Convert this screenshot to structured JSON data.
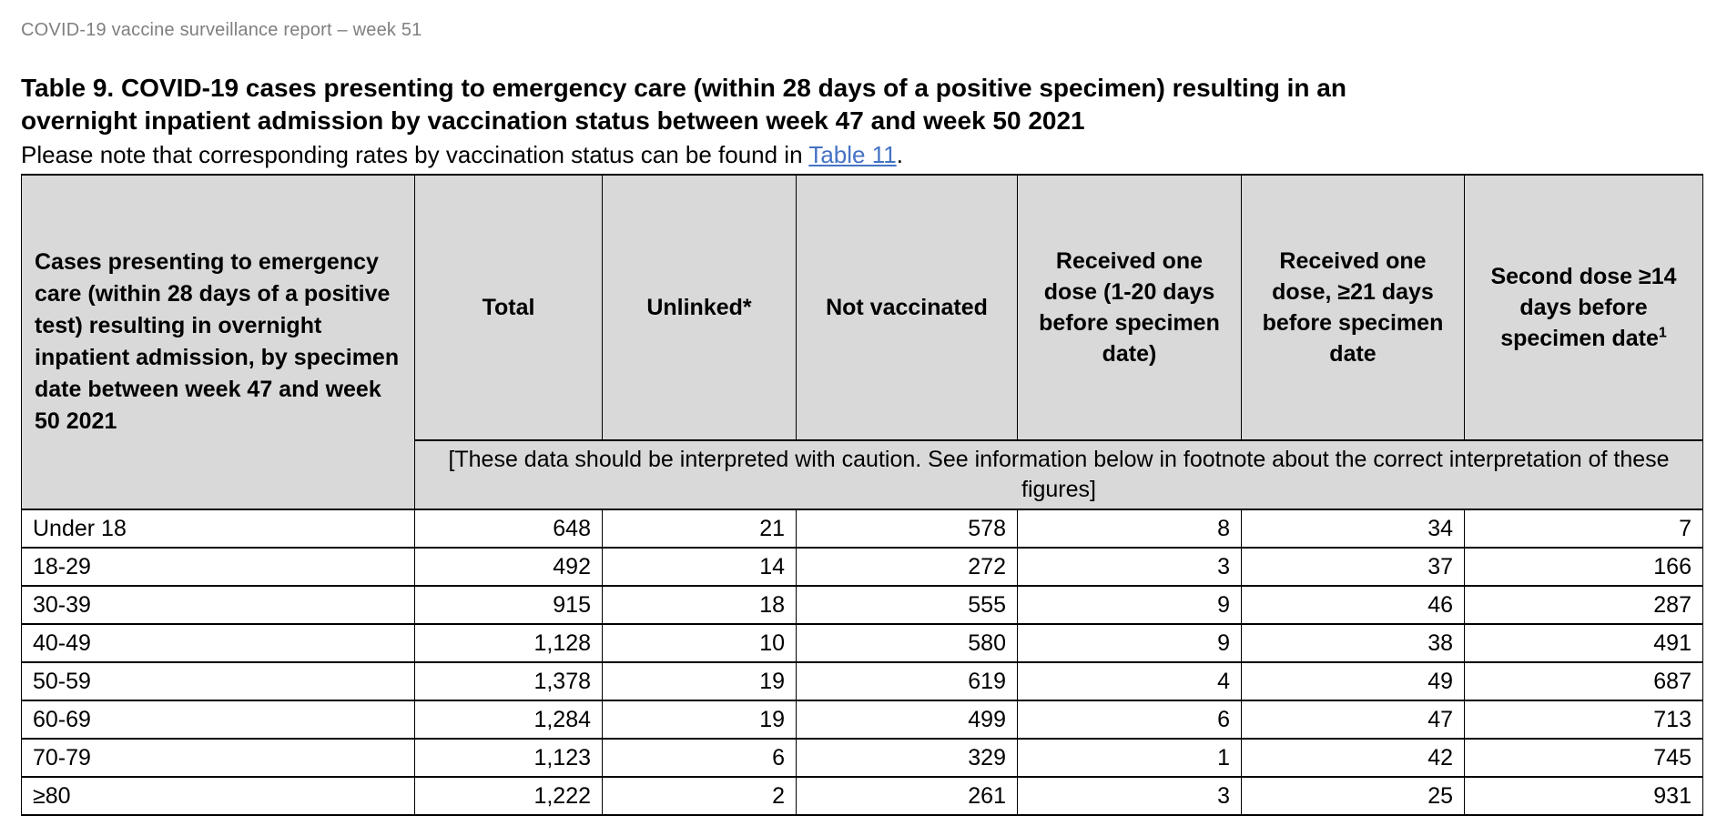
{
  "doc_header": "COVID-19 vaccine surveillance report – week 51",
  "title": "Table 9. COVID-19 cases presenting to emergency care (within 28 days of a positive specimen) resulting in an overnight inpatient admission by vaccination status between week 47 and week 50 2021",
  "note": {
    "prefix": "Please note that corresponding rates by vaccination status can be found in ",
    "link_label": "Table 11",
    "suffix": "."
  },
  "table": {
    "row_header_label": "Cases presenting to emergency care (within 28 days of a positive test) resulting in overnight inpatient admission, by specimen date between week 47 and week 50 2021",
    "columns": [
      "Total",
      "Unlinked*",
      "Not vaccinated",
      "Received one dose (1-20 days before specimen date)",
      "Received one dose, ≥21 days before specimen date",
      "Second dose ≥14 days before specimen date"
    ],
    "last_column_footnote_marker": "1",
    "caution_note": "[These data should be interpreted with caution. See information below in footnote about the correct interpretation of these figures]",
    "rows": [
      {
        "label": "Under 18",
        "values": [
          "648",
          "21",
          "578",
          "8",
          "34",
          "7"
        ]
      },
      {
        "label": "18-29",
        "values": [
          "492",
          "14",
          "272",
          "3",
          "37",
          "166"
        ]
      },
      {
        "label": "30-39",
        "values": [
          "915",
          "18",
          "555",
          "9",
          "46",
          "287"
        ]
      },
      {
        "label": "40-49",
        "values": [
          "1,128",
          "10",
          "580",
          "9",
          "38",
          "491"
        ]
      },
      {
        "label": "50-59",
        "values": [
          "1,378",
          "19",
          "619",
          "4",
          "49",
          "687"
        ]
      },
      {
        "label": "60-69",
        "values": [
          "1,284",
          "19",
          "499",
          "6",
          "47",
          "713"
        ]
      },
      {
        "label": "70-79",
        "values": [
          "1,123",
          "6",
          "329",
          "1",
          "42",
          "745"
        ]
      },
      {
        "label": "≥80",
        "values": [
          "1,222",
          "2",
          "261",
          "3",
          "25",
          "931"
        ]
      }
    ]
  },
  "colors": {
    "header_text_gray": "#7f7f7f",
    "link_blue": "#4472c4",
    "table_header_fill": "#d9d9d9",
    "border_black": "#000000"
  }
}
